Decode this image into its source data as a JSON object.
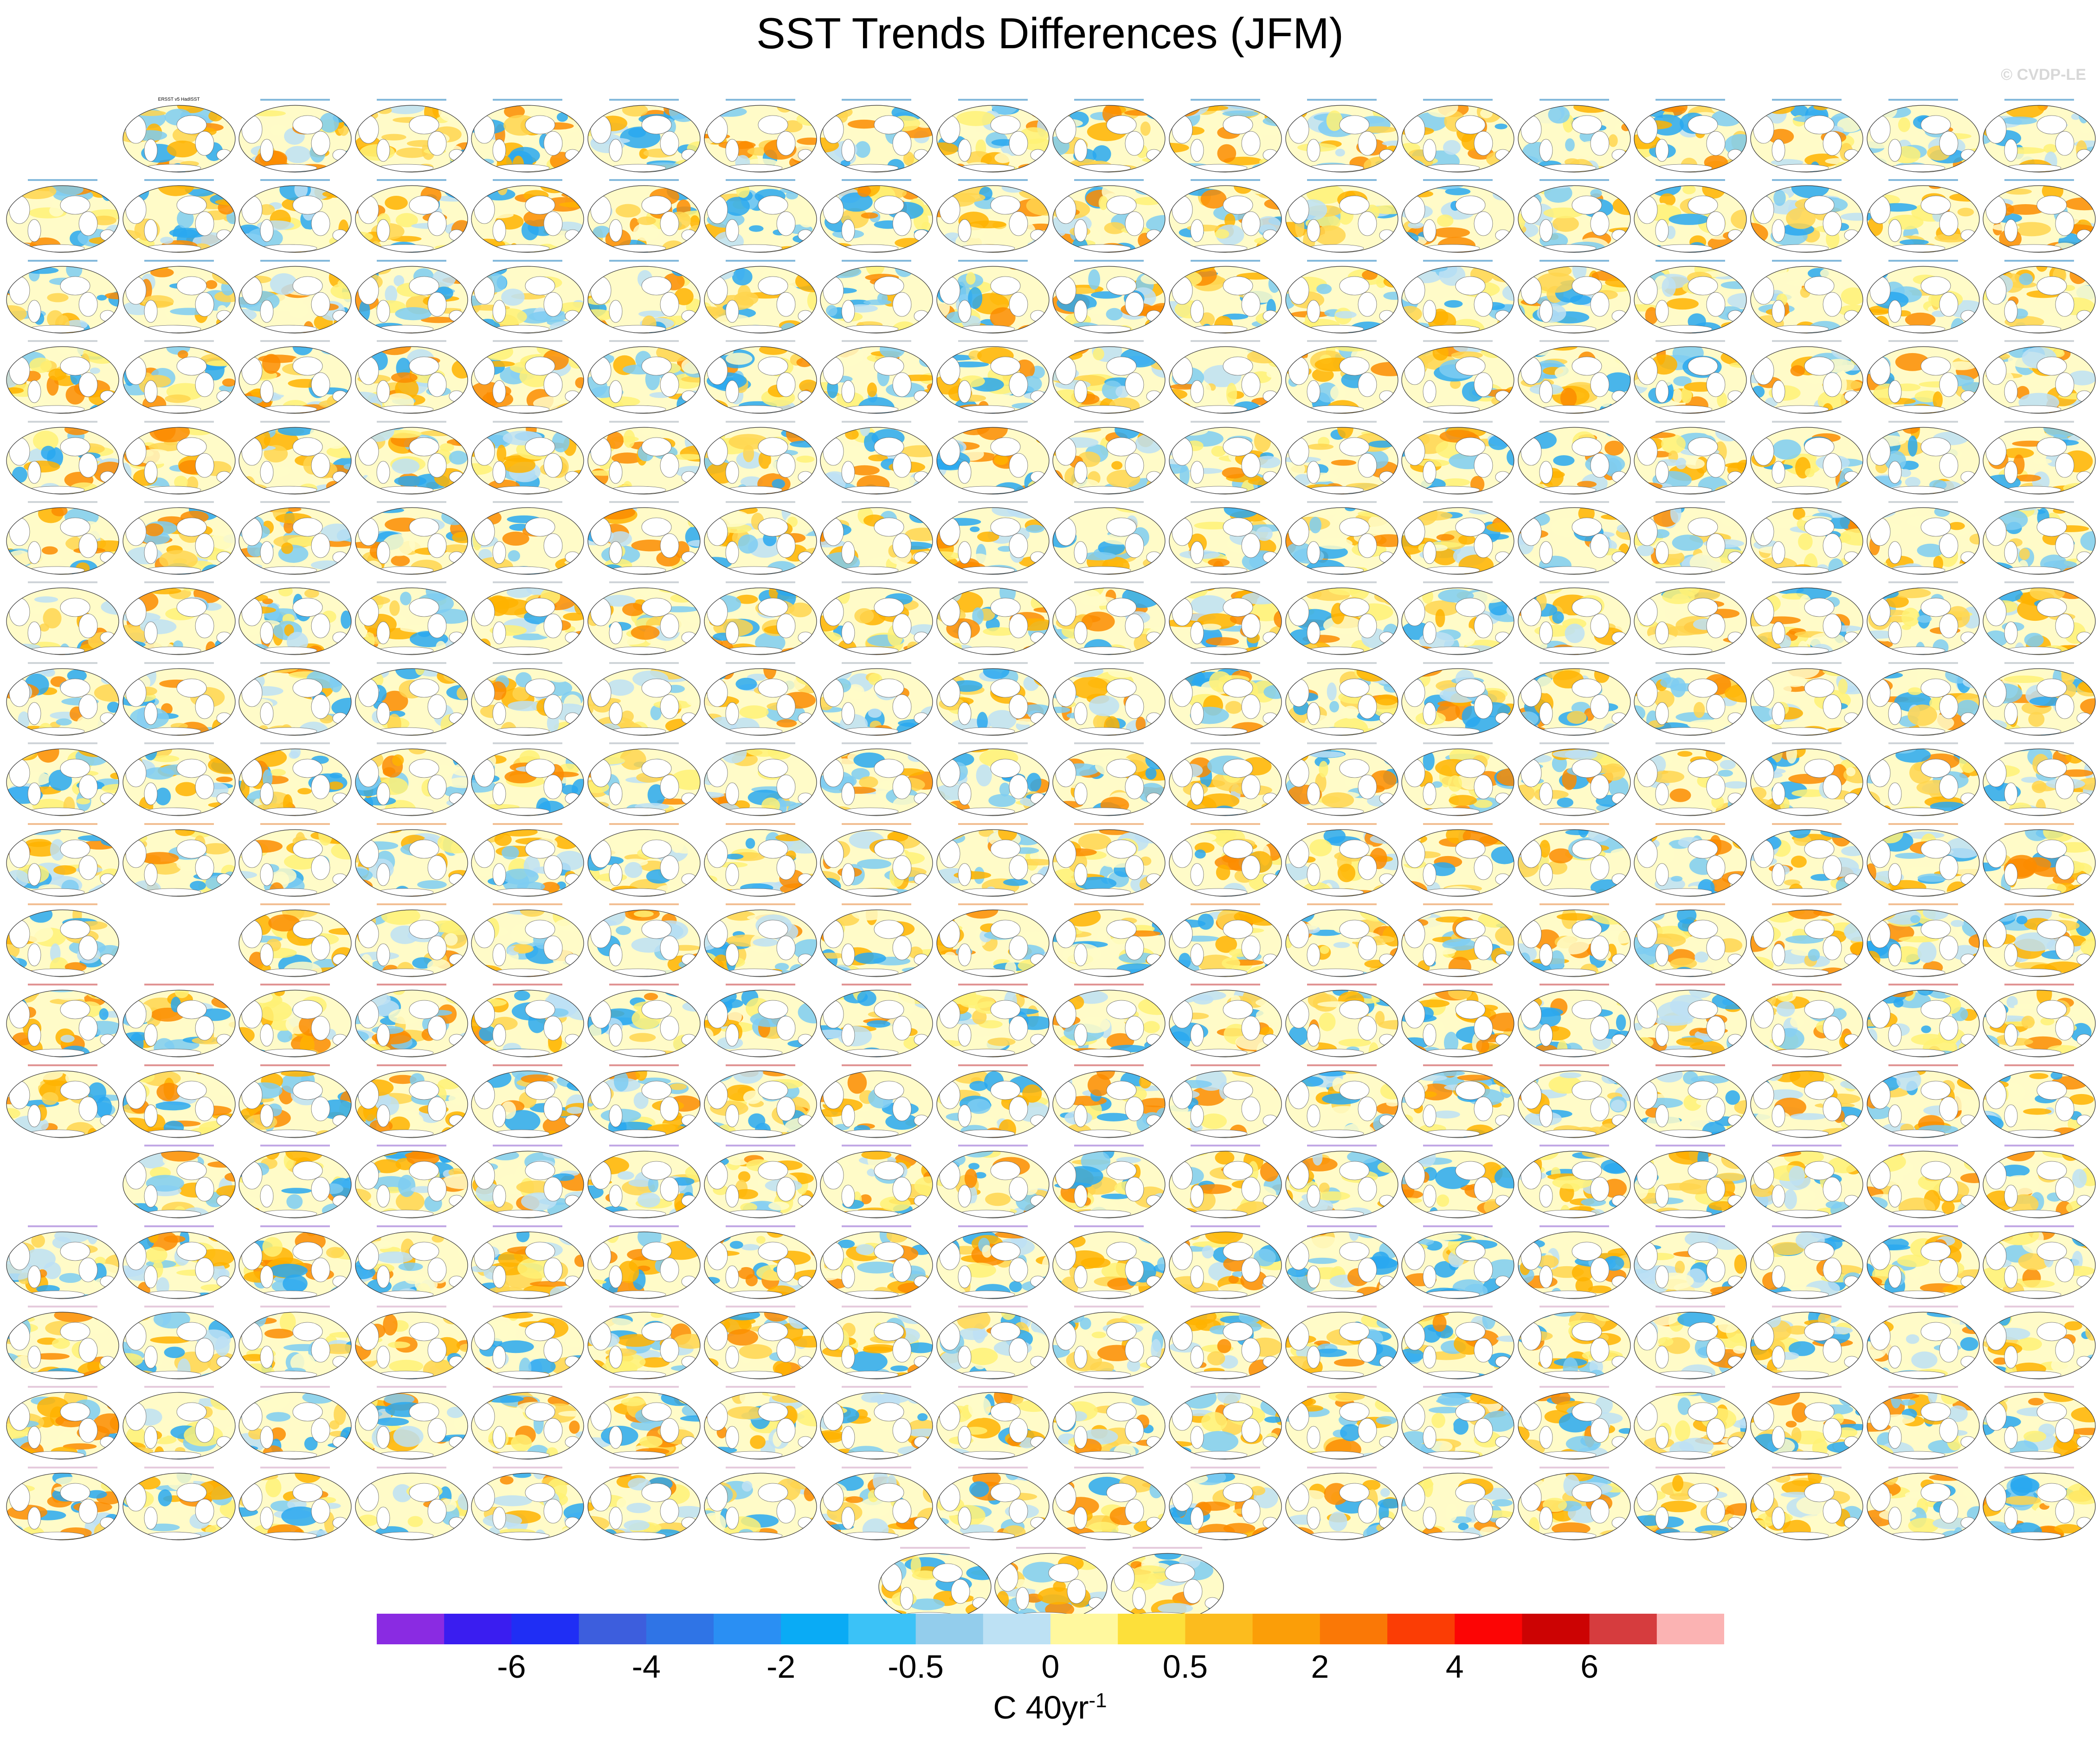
{
  "title": "SST Trends Differences (JFM)",
  "copyright": "© CVDP-LE",
  "colorbar": {
    "colors": [
      "#8a2be2",
      "#3a1df0",
      "#1f2ef5",
      "#3d5edd",
      "#2f74e6",
      "#2a8ff3",
      "#0aabf5",
      "#3bc2f7",
      "#93cdec",
      "#bde1f4",
      "#fff89e",
      "#fde03a",
      "#fcbc1e",
      "#fb9e08",
      "#fa7806",
      "#fb3d05",
      "#fc0505",
      "#cc0303",
      "#d63c3e",
      "#fbb3b3"
    ],
    "tick_labels": [
      "-6",
      "-4",
      "-2",
      "-0.5",
      "0",
      "0.5",
      "2",
      "4",
      "6"
    ],
    "units": "C 40yr",
    "units_exponent": "-1"
  },
  "panels": {
    "observation_label": "ERSST v5 HadISST",
    "title_colors": {
      "obs": "#000000",
      "cesm": "#1f7fc0",
      "lens": "#a8b0b8",
      "cmip6": "#e88a3a",
      "giss": "#c83c3c",
      "ipsl": "#9060d0",
      "mpi": "#d0a0c0"
    },
    "map_palette": [
      "#ffffff",
      "#fffbc8",
      "#fff176",
      "#ffd54f",
      "#ffb300",
      "#fb8c00",
      "#bde1f4",
      "#7ecdf2",
      "#29a8f0"
    ]
  }
}
